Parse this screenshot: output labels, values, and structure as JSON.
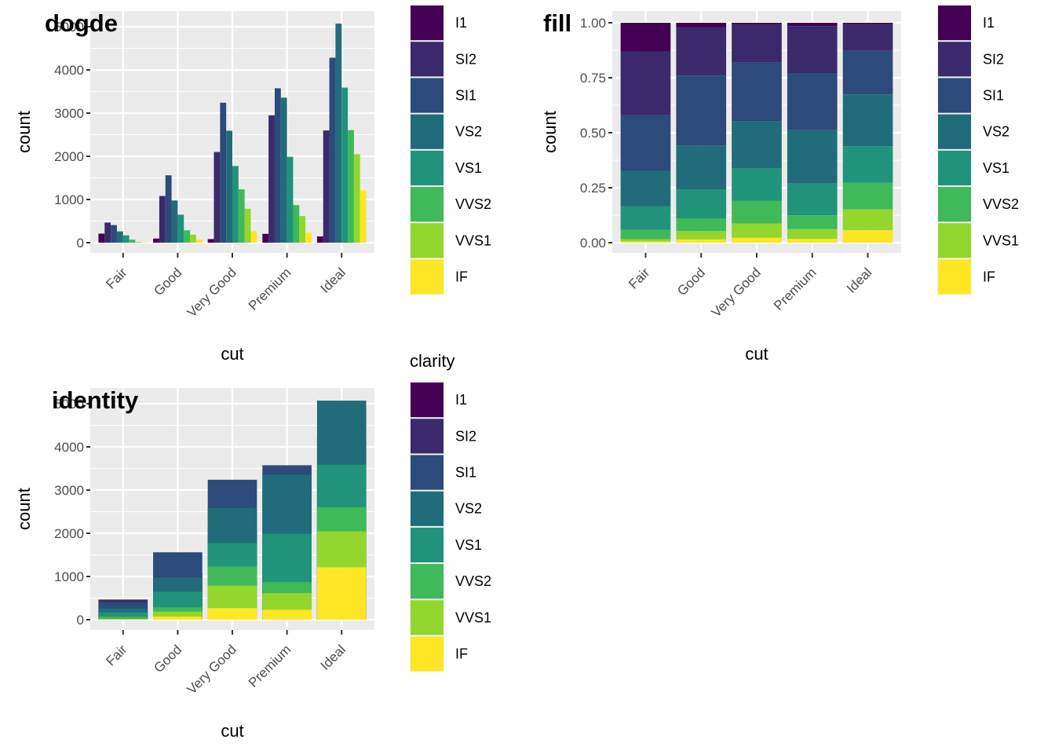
{
  "chart_data": [
    {
      "type": "bar",
      "position": "dodge",
      "title": "dogde",
      "xlabel": "cut",
      "ylabel": "count",
      "categories": [
        "Fair",
        "Good",
        "Very Good",
        "Premium",
        "Ideal"
      ],
      "ylim": [
        0,
        5300
      ],
      "yticks": [
        0,
        1000,
        2000,
        3000,
        4000,
        5000
      ],
      "ytick_labels": [
        "0",
        "1000",
        "2000",
        "3000",
        "4000",
        "5000"
      ],
      "grid": true,
      "legend": {
        "title": "",
        "placement": "right"
      },
      "series": [
        {
          "name": "I1",
          "color": "#440154",
          "values": [
            210,
            96,
            84,
            205,
            146
          ]
        },
        {
          "name": "SI2",
          "color": "#3B2A6B",
          "values": [
            466,
            1081,
            2100,
            2949,
            2598
          ]
        },
        {
          "name": "SI1",
          "color": "#2C4A7A",
          "values": [
            408,
            1560,
            3240,
            3575,
            4282
          ]
        },
        {
          "name": "VS2",
          "color": "#216C7A",
          "values": [
            261,
            978,
            2591,
            3357,
            5071
          ]
        },
        {
          "name": "VS1",
          "color": "#20937A",
          "values": [
            170,
            648,
            1775,
            1989,
            3589
          ]
        },
        {
          "name": "VVS2",
          "color": "#3FB95A",
          "values": [
            69,
            286,
            1235,
            870,
            2606
          ]
        },
        {
          "name": "VVS1",
          "color": "#93D62E",
          "values": [
            17,
            186,
            789,
            616,
            2047
          ]
        },
        {
          "name": "IF",
          "color": "#FDE725",
          "values": [
            9,
            71,
            268,
            230,
            1212
          ]
        }
      ]
    },
    {
      "type": "bar",
      "position": "fill",
      "title": "fill",
      "xlabel": "cut",
      "ylabel": "count",
      "categories": [
        "Fair",
        "Good",
        "Very Good",
        "Premium",
        "Ideal"
      ],
      "ylim": [
        0,
        1.05
      ],
      "yticks": [
        0,
        0.25,
        0.5,
        0.75,
        1.0
      ],
      "ytick_labels": [
        "0.00",
        "0.25",
        "0.50",
        "0.75",
        "1.00"
      ],
      "grid": true,
      "legend": {
        "title": "",
        "placement": "right"
      },
      "series": [
        {
          "name": "I1",
          "color": "#440154",
          "values": [
            210,
            96,
            84,
            205,
            146
          ]
        },
        {
          "name": "SI2",
          "color": "#3B2A6B",
          "values": [
            466,
            1081,
            2100,
            2949,
            2598
          ]
        },
        {
          "name": "SI1",
          "color": "#2C4A7A",
          "values": [
            408,
            1560,
            3240,
            3575,
            4282
          ]
        },
        {
          "name": "VS2",
          "color": "#216C7A",
          "values": [
            261,
            978,
            2591,
            3357,
            5071
          ]
        },
        {
          "name": "VS1",
          "color": "#20937A",
          "values": [
            170,
            648,
            1775,
            1989,
            3589
          ]
        },
        {
          "name": "VVS2",
          "color": "#3FB95A",
          "values": [
            69,
            286,
            1235,
            870,
            2606
          ]
        },
        {
          "name": "VVS1",
          "color": "#93D62E",
          "values": [
            17,
            186,
            789,
            616,
            2047
          ]
        },
        {
          "name": "IF",
          "color": "#FDE725",
          "values": [
            9,
            71,
            268,
            230,
            1212
          ]
        }
      ]
    },
    {
      "type": "bar",
      "position": "identity",
      "title": "identity",
      "xlabel": "cut",
      "ylabel": "count",
      "categories": [
        "Fair",
        "Good",
        "Very Good",
        "Premium",
        "Ideal"
      ],
      "ylim": [
        0,
        5300
      ],
      "yticks": [
        0,
        1000,
        2000,
        3000,
        4000,
        5000
      ],
      "ytick_labels": [
        "0",
        "1000",
        "2000",
        "3000",
        "4000",
        "5000"
      ],
      "grid": true,
      "legend": {
        "title": "clarity",
        "placement": "right"
      },
      "series": [
        {
          "name": "I1",
          "color": "#440154",
          "values": [
            210,
            96,
            84,
            205,
            146
          ]
        },
        {
          "name": "SI2",
          "color": "#3B2A6B",
          "values": [
            466,
            1081,
            2100,
            2949,
            2598
          ]
        },
        {
          "name": "SI1",
          "color": "#2C4A7A",
          "values": [
            408,
            1560,
            3240,
            3575,
            4282
          ]
        },
        {
          "name": "VS2",
          "color": "#216C7A",
          "values": [
            261,
            978,
            2591,
            3357,
            5071
          ]
        },
        {
          "name": "VS1",
          "color": "#20937A",
          "values": [
            170,
            648,
            1775,
            1989,
            3589
          ]
        },
        {
          "name": "VVS2",
          "color": "#3FB95A",
          "values": [
            69,
            286,
            1235,
            870,
            2606
          ]
        },
        {
          "name": "VVS1",
          "color": "#93D62E",
          "values": [
            17,
            186,
            789,
            616,
            2047
          ]
        },
        {
          "name": "IF",
          "color": "#FDE725",
          "values": [
            9,
            71,
            268,
            230,
            1212
          ]
        }
      ]
    }
  ],
  "colors": {
    "panel_background": "#EBEBEB",
    "grid_line": "#FFFFFF",
    "tick_text": "#4D4D4D"
  }
}
